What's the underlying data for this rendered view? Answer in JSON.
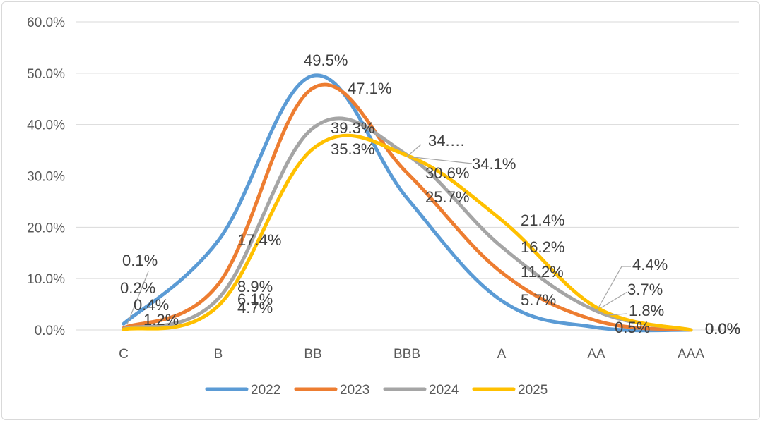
{
  "chart_data": {
    "type": "line",
    "smooth": true,
    "title": "",
    "xlabel": "",
    "ylabel": "",
    "categories": [
      "C",
      "B",
      "BB",
      "BBB",
      "A",
      "AA",
      "AAA"
    ],
    "ylim": [
      0,
      60
    ],
    "y_ticks": [
      "0.0%",
      "10.0%",
      "20.0%",
      "30.0%",
      "40.0%",
      "50.0%",
      "60.0%"
    ],
    "grid": true,
    "legend_position": "bottom",
    "series": [
      {
        "name": "2022",
        "color": "#5B9BD5",
        "values": [
          1.2,
          17.4,
          49.5,
          25.7,
          5.7,
          0.5,
          0.0
        ],
        "labels": [
          "1.2%",
          "17.4%",
          "49.5%",
          "25.7%",
          "5.7%",
          "0.5%",
          "0.0%"
        ]
      },
      {
        "name": "2023",
        "color": "#ED7D31",
        "values": [
          0.4,
          8.9,
          47.1,
          30.6,
          11.2,
          1.8,
          0.0
        ],
        "labels": [
          "0.4%",
          "8.9%",
          "47.1%",
          "30.6%",
          "11.2%",
          "1.8%",
          "0.0%"
        ]
      },
      {
        "name": "2024",
        "color": "#A5A5A5",
        "values": [
          0.2,
          6.1,
          39.3,
          34.1,
          16.2,
          3.7,
          0.0
        ],
        "labels": [
          "0.2%",
          "6.1%",
          "39.3%",
          "34.1%",
          "16.2%",
          "3.7%",
          "0.0%"
        ]
      },
      {
        "name": "2025",
        "color": "#FFC000",
        "values": [
          0.1,
          4.7,
          35.3,
          34.0,
          21.4,
          4.4,
          0.0
        ],
        "labels": [
          "0.1%",
          "4.7%",
          "35.3%",
          "34.…",
          "21.4%",
          "4.4%",
          "0.0%"
        ]
      }
    ]
  }
}
